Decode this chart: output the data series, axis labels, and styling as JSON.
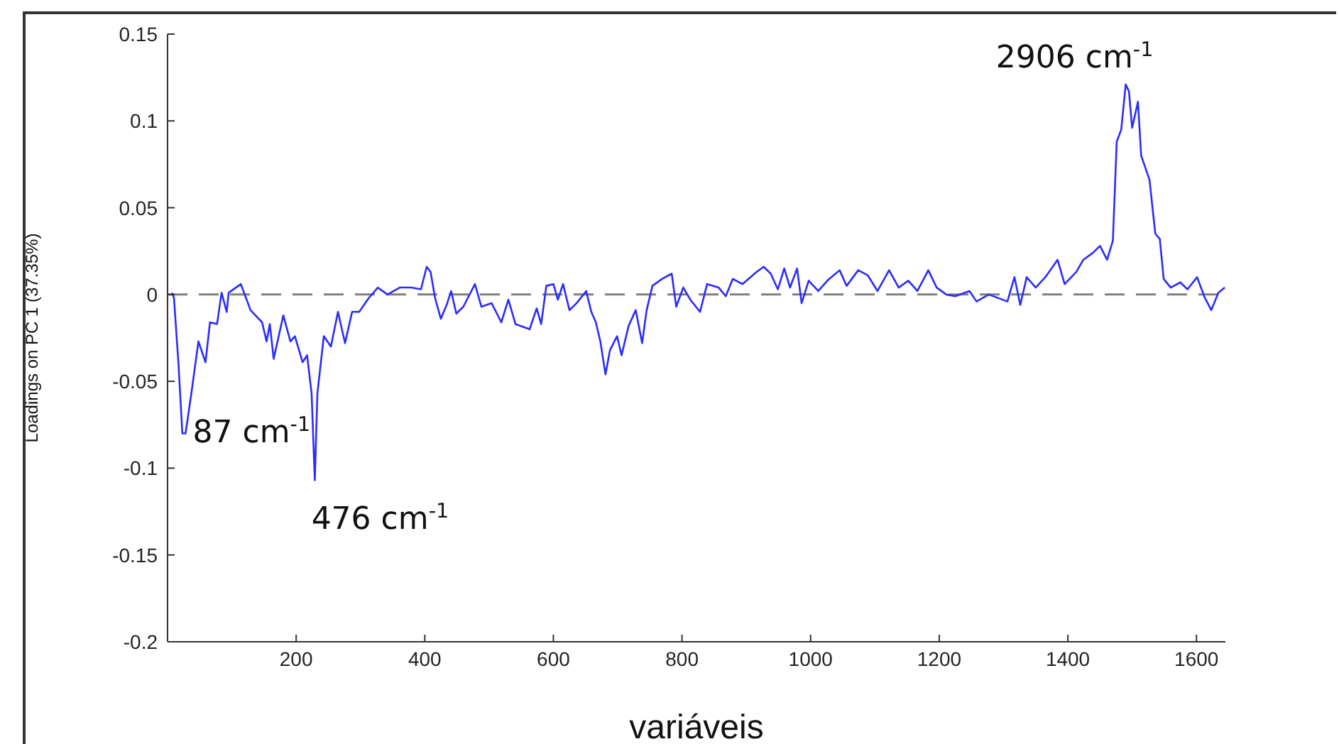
{
  "chart_data": {
    "type": "line",
    "xlabel": "variáveis",
    "ylabel": "Loadings on PC 1 (37.35%)",
    "xlim": [
      0,
      1645
    ],
    "xticks": [
      200,
      400,
      600,
      800,
      1000,
      1200,
      1400,
      1600
    ],
    "ylim": [
      -0.2,
      0.15
    ],
    "yticks": [
      -0.2,
      -0.15,
      -0.1,
      -0.05,
      0,
      0.05,
      0.1,
      0.15
    ],
    "grid": false,
    "legend": false,
    "marker": "none",
    "line_style": "solid",
    "ref_lines": [
      {
        "axis": "y",
        "value": 0,
        "color": "#808080",
        "line_style": "dashed"
      }
    ],
    "annotations": [
      {
        "text": "87 cm$^{-1}$",
        "x": 26,
        "y": -0.08
      },
      {
        "text": "476 cm$^{-1}$",
        "x": 229,
        "y": -0.107
      },
      {
        "text": "2906 cm$^{-1}$",
        "x": 1490,
        "y": 0.121
      }
    ],
    "series": [
      {
        "color": "#2b2bff",
        "x": [
          7,
          10,
          17,
          23,
          28,
          37,
          48,
          59,
          66,
          77,
          84,
          92,
          95,
          114,
          129,
          147,
          154,
          159,
          165,
          180,
          191,
          198,
          210,
          217,
          224,
          229,
          233,
          243,
          254,
          265,
          276,
          287,
          298,
          313,
          327,
          342,
          361,
          379,
          394,
          403,
          409,
          416,
          425,
          434,
          441,
          449,
          460,
          478,
          488,
          504,
          519,
          530,
          541,
          563,
          574,
          581,
          589,
          600,
          607,
          615,
          625,
          636,
          651,
          659,
          666,
          673,
          681,
          688,
          699,
          706,
          717,
          728,
          738,
          745,
          754,
          769,
          784,
          791,
          802,
          813,
          828,
          839,
          857,
          868,
          879,
          894,
          916,
          927,
          938,
          949,
          959,
          968,
          979,
          986,
          997,
          1012,
          1026,
          1045,
          1056,
          1074,
          1089,
          1104,
          1122,
          1137,
          1152,
          1166,
          1183,
          1196,
          1211,
          1225,
          1247,
          1258,
          1277,
          1306,
          1317,
          1326,
          1336,
          1350,
          1365,
          1384,
          1395,
          1413,
          1424,
          1439,
          1450,
          1461,
          1470,
          1476,
          1483,
          1490,
          1495,
          1500,
          1509,
          1514,
          1527,
          1536,
          1543,
          1549,
          1560,
          1575,
          1586,
          1601,
          1612,
          1623,
          1634,
          1644
        ],
        "values": [
          0.001,
          -0.002,
          -0.04,
          -0.08,
          -0.08,
          -0.057,
          -0.027,
          -0.039,
          -0.016,
          -0.017,
          0.001,
          -0.01,
          0.001,
          0.006,
          -0.009,
          -0.016,
          -0.027,
          -0.017,
          -0.037,
          -0.012,
          -0.027,
          -0.024,
          -0.039,
          -0.035,
          -0.057,
          -0.107,
          -0.057,
          -0.024,
          -0.03,
          -0.01,
          -0.028,
          -0.01,
          -0.01,
          -0.002,
          0.004,
          0,
          0.004,
          0.004,
          0.003,
          0.016,
          0.013,
          -0.002,
          -0.014,
          -0.006,
          0.002,
          -0.011,
          -0.007,
          0.006,
          -0.007,
          -0.005,
          -0.016,
          -0.003,
          -0.017,
          -0.02,
          -0.008,
          -0.017,
          0.005,
          0.006,
          -0.003,
          0.006,
          -0.009,
          -0.005,
          0.002,
          -0.01,
          -0.016,
          -0.027,
          -0.046,
          -0.032,
          -0.024,
          -0.035,
          -0.018,
          -0.009,
          -0.028,
          -0.009,
          0.005,
          0.009,
          0.012,
          -0.007,
          0.004,
          -0.003,
          -0.01,
          0.006,
          0.004,
          -0.001,
          0.009,
          0.006,
          0.013,
          0.016,
          0.012,
          0.003,
          0.015,
          0.004,
          0.015,
          -0.005,
          0.008,
          0.002,
          0.008,
          0.014,
          0.005,
          0.014,
          0.011,
          0.002,
          0.014,
          0.004,
          0.008,
          0.002,
          0.014,
          0.004,
          0,
          -0.001,
          0.002,
          -0.004,
          0,
          -0.004,
          0.01,
          -0.006,
          0.01,
          0.004,
          0.01,
          0.02,
          0.006,
          0.013,
          0.02,
          0.024,
          0.028,
          0.02,
          0.031,
          0.088,
          0.095,
          0.121,
          0.117,
          0.096,
          0.111,
          0.08,
          0.066,
          0.035,
          0.032,
          0.009,
          0.004,
          0.007,
          0.003,
          0.01,
          -0.001,
          -0.009,
          0.001,
          0.004
        ]
      }
    ]
  }
}
